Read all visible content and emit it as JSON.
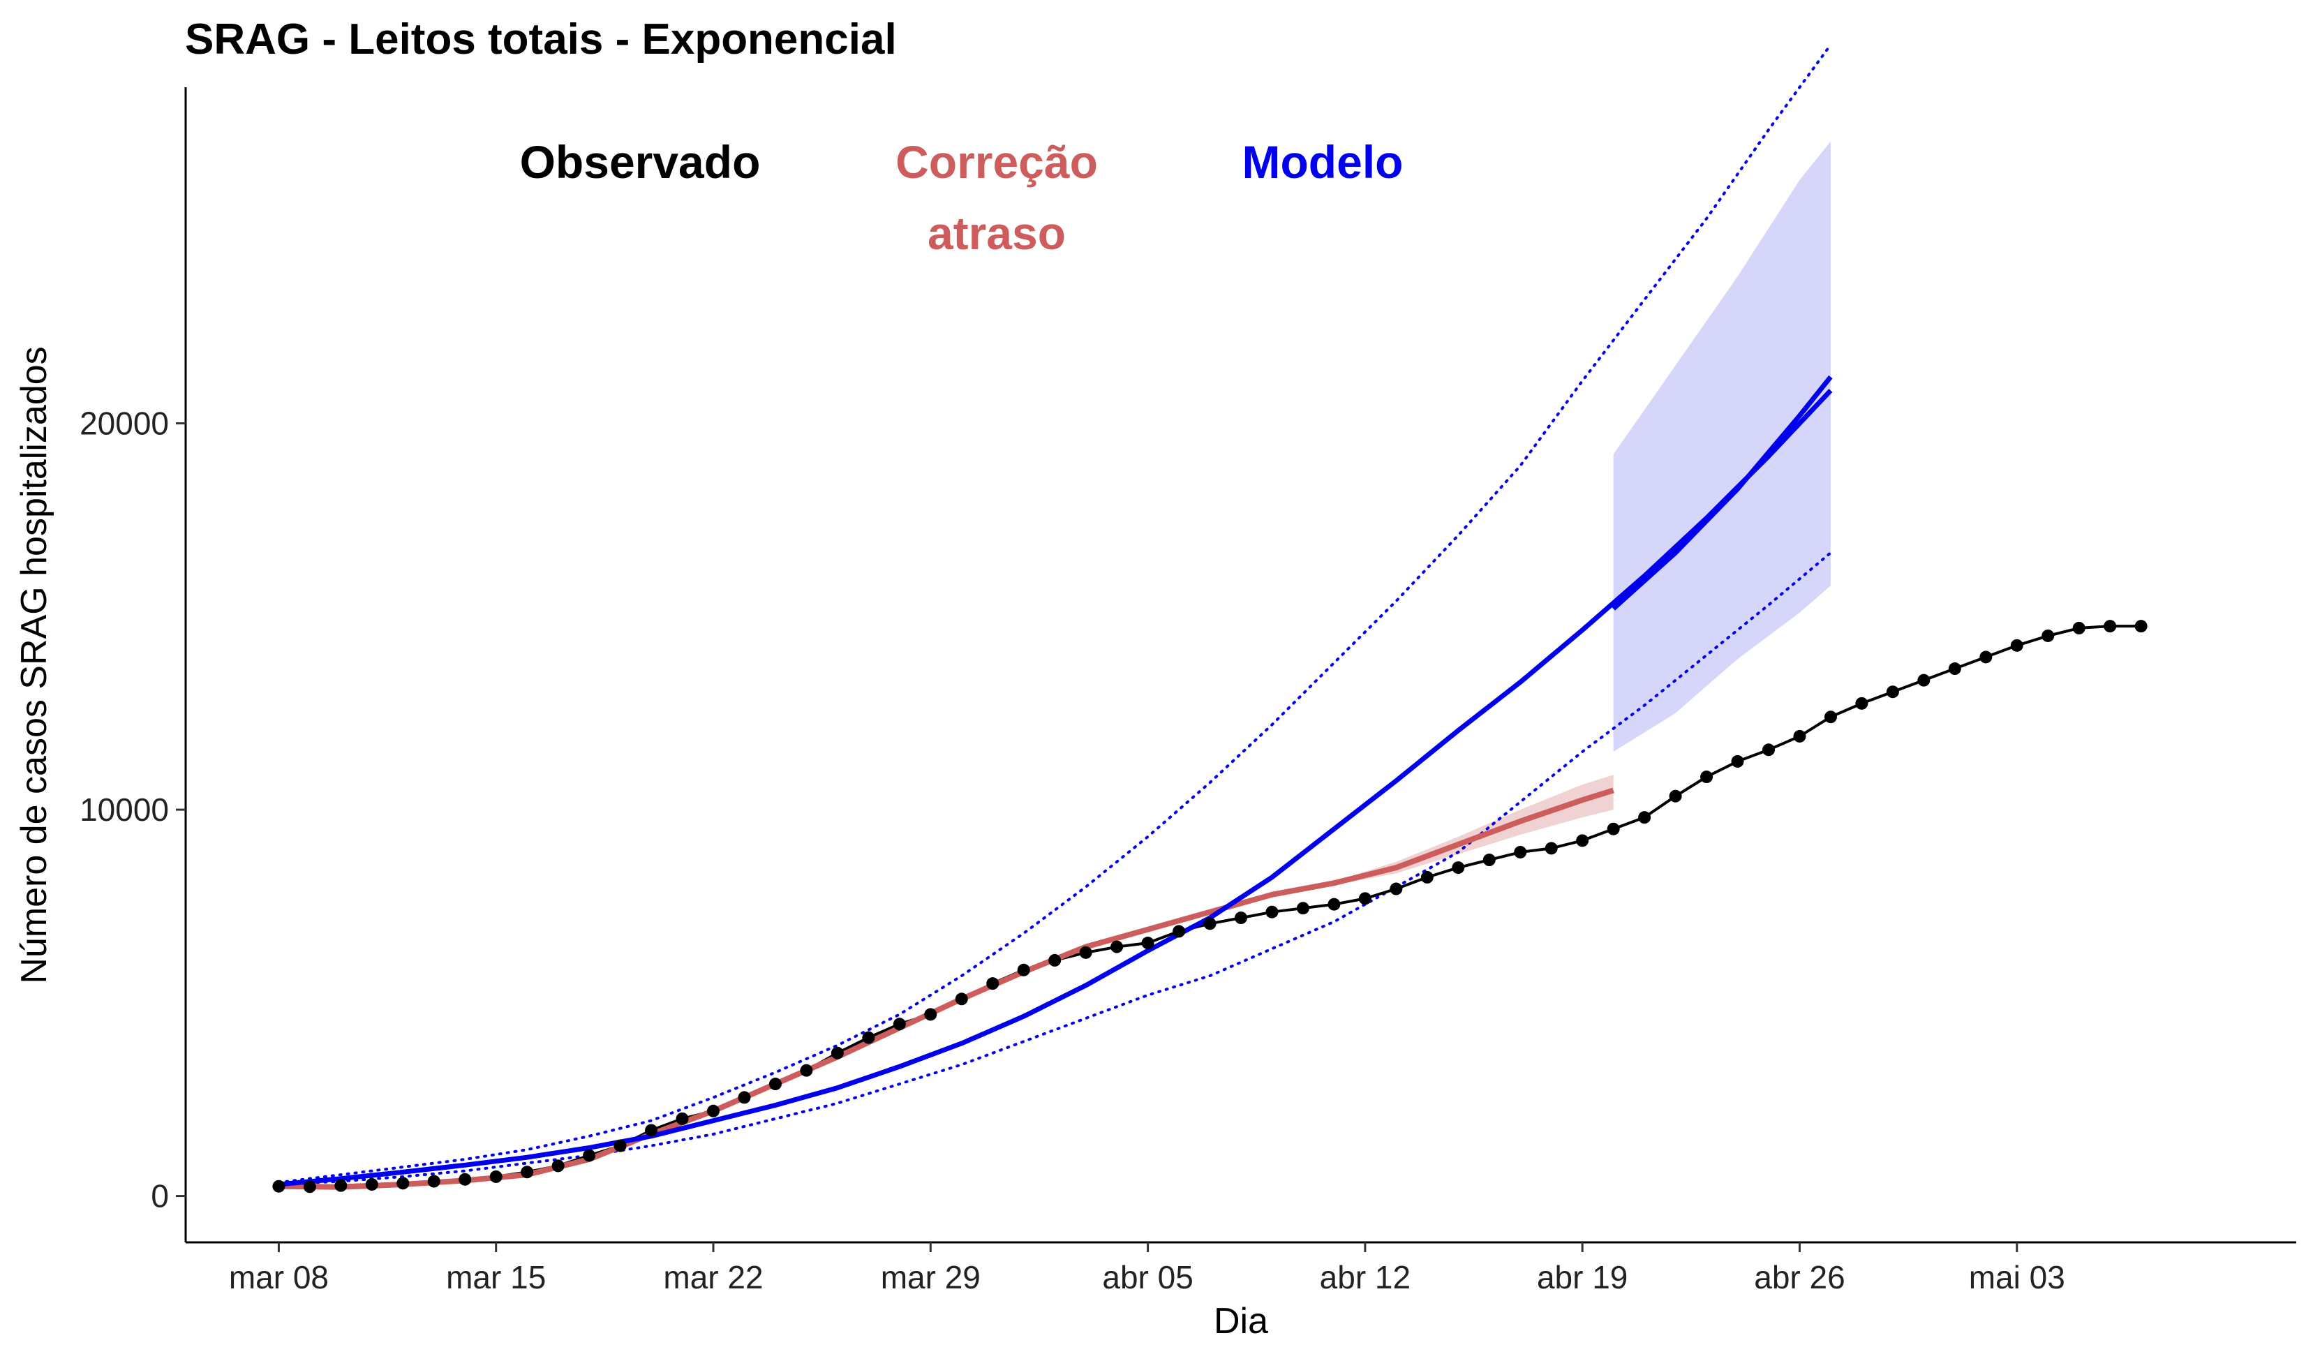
{
  "title": "SRAG - Leitos totais - Exponencial",
  "chart_data": {
    "type": "line",
    "title": "SRAG - Leitos totais - Exponencial",
    "xlabel": "Dia",
    "ylabel": "Número de casos SRAG hospitalizados",
    "x_ticks": [
      {
        "date": "2020-03-08",
        "label": "mar 08"
      },
      {
        "date": "2020-03-15",
        "label": "mar 15"
      },
      {
        "date": "2020-03-22",
        "label": "mar 22"
      },
      {
        "date": "2020-03-29",
        "label": "mar 29"
      },
      {
        "date": "2020-04-05",
        "label": "abr 05"
      },
      {
        "date": "2020-04-12",
        "label": "abr 12"
      },
      {
        "date": "2020-04-19",
        "label": "abr 19"
      },
      {
        "date": "2020-04-26",
        "label": "abr 26"
      },
      {
        "date": "2020-05-03",
        "label": "mai 03"
      }
    ],
    "y_ticks": [
      0,
      10000,
      20000
    ],
    "xlim": [
      "2020-03-05",
      "2020-05-12"
    ],
    "ylim": [
      -1200,
      28700
    ],
    "grid": false,
    "legend": {
      "position": "top-left",
      "entries": [
        {
          "label": "Observado",
          "color": "#000000"
        },
        {
          "label_lines": [
            "Correção",
            "atraso"
          ],
          "color": "#CD5C5C"
        },
        {
          "label": "Modelo",
          "color": "#0000EE"
        }
      ]
    },
    "colors": {
      "observed": "#000000",
      "correction": "#CD5C5C",
      "model": "#0000EE",
      "band_fill": "#D6D6FA",
      "correction_band": "#F1D2D2"
    },
    "observed": {
      "x": [
        "2020-03-08",
        "2020-03-09",
        "2020-03-10",
        "2020-03-11",
        "2020-03-12",
        "2020-03-13",
        "2020-03-14",
        "2020-03-15",
        "2020-03-16",
        "2020-03-17",
        "2020-03-18",
        "2020-03-19",
        "2020-03-20",
        "2020-03-21",
        "2020-03-22",
        "2020-03-23",
        "2020-03-24",
        "2020-03-25",
        "2020-03-26",
        "2020-03-27",
        "2020-03-28",
        "2020-03-29",
        "2020-03-30",
        "2020-03-31",
        "2020-04-01",
        "2020-04-02",
        "2020-04-03",
        "2020-04-04",
        "2020-04-05",
        "2020-04-06",
        "2020-04-07",
        "2020-04-08",
        "2020-04-09",
        "2020-04-10",
        "2020-04-11",
        "2020-04-12",
        "2020-04-13",
        "2020-04-14",
        "2020-04-15",
        "2020-04-16",
        "2020-04-17",
        "2020-04-18",
        "2020-04-19",
        "2020-04-20",
        "2020-04-21",
        "2020-04-22",
        "2020-04-23",
        "2020-04-24",
        "2020-04-25",
        "2020-04-26",
        "2020-04-27",
        "2020-04-28",
        "2020-04-29",
        "2020-04-30",
        "2020-05-01",
        "2020-05-02",
        "2020-05-03",
        "2020-05-04",
        "2020-05-05",
        "2020-05-06",
        "2020-05-07"
      ],
      "y": [
        250,
        240,
        270,
        300,
        330,
        380,
        430,
        500,
        620,
        780,
        1050,
        1300,
        1700,
        2000,
        2200,
        2550,
        2900,
        3250,
        3700,
        4100,
        4450,
        4700,
        5100,
        5500,
        5850,
        6100,
        6300,
        6450,
        6550,
        6850,
        7050,
        7200,
        7350,
        7450,
        7550,
        7700,
        7950,
        8250,
        8500,
        8700,
        8900,
        9000,
        9200,
        9500,
        9800,
        10350,
        10850,
        11250,
        11550,
        11900,
        12400,
        12750,
        13050,
        13350,
        13650,
        13950,
        14250,
        14500,
        14700,
        14750,
        14750
      ]
    },
    "correction": {
      "x": [
        "2020-03-08",
        "2020-03-10",
        "2020-03-12",
        "2020-03-14",
        "2020-03-16",
        "2020-03-18",
        "2020-03-20",
        "2020-03-22",
        "2020-03-24",
        "2020-03-26",
        "2020-03-28",
        "2020-03-30",
        "2020-04-01",
        "2020-04-03",
        "2020-04-05",
        "2020-04-07",
        "2020-04-09",
        "2020-04-11",
        "2020-04-13",
        "2020-04-15",
        "2020-04-17",
        "2020-04-19",
        "2020-04-20"
      ],
      "y": [
        250,
        230,
        300,
        400,
        550,
        950,
        1600,
        2200,
        2900,
        3600,
        4350,
        5100,
        5800,
        6450,
        6900,
        7350,
        7800,
        8100,
        8500,
        9100,
        9700,
        10250,
        10500
      ],
      "band_lower": [
        250,
        230,
        300,
        400,
        550,
        950,
        1600,
        2200,
        2900,
        3600,
        4350,
        5100,
        5800,
        6450,
        6900,
        7350,
        7800,
        8050,
        8350,
        8850,
        9350,
        9800,
        10000
      ],
      "band_upper": [
        250,
        230,
        300,
        400,
        550,
        950,
        1600,
        2200,
        2900,
        3600,
        4350,
        5100,
        5800,
        6450,
        6900,
        7350,
        7800,
        8150,
        8650,
        9300,
        10000,
        10650,
        10900
      ]
    },
    "model": {
      "x": [
        "2020-03-08",
        "2020-03-10",
        "2020-03-12",
        "2020-03-14",
        "2020-03-16",
        "2020-03-18",
        "2020-03-20",
        "2020-03-22",
        "2020-03-24",
        "2020-03-26",
        "2020-03-28",
        "2020-03-30",
        "2020-04-01",
        "2020-04-03",
        "2020-04-05",
        "2020-04-07",
        "2020-04-09",
        "2020-04-11",
        "2020-04-13",
        "2020-04-15",
        "2020-04-17",
        "2020-04-19",
        "2020-04-21",
        "2020-04-23",
        "2020-04-25",
        "2020-04-27"
      ],
      "y": [
        300,
        450,
        620,
        800,
        1000,
        1250,
        1550,
        1950,
        2350,
        2800,
        3350,
        3950,
        4650,
        5450,
        6350,
        7200,
        8250,
        9500,
        10750,
        12050,
        13300,
        14650,
        16050,
        17550,
        19150,
        20850
      ],
      "upper": [
        350,
        550,
        750,
        950,
        1200,
        1550,
        1950,
        2550,
        3200,
        3900,
        4700,
        5700,
        6800,
        8000,
        9300,
        10700,
        12200,
        13800,
        15400,
        17100,
        18900,
        21100,
        23200,
        25300,
        27600,
        29800
      ],
      "lower": [
        300,
        380,
        500,
        650,
        850,
        1050,
        1300,
        1600,
        2000,
        2400,
        2900,
        3400,
        4000,
        4600,
        5200,
        5700,
        6400,
        7100,
        8000,
        8900,
        10200,
        11500,
        12700,
        14000,
        15300,
        16650
      ]
    },
    "projection": {
      "x": [
        "2020-04-20",
        "2020-04-22",
        "2020-04-24",
        "2020-04-26",
        "2020-04-27"
      ],
      "y": [
        15200,
        16650,
        18300,
        20200,
        21200
      ],
      "upper": [
        19200,
        21500,
        23800,
        26300,
        27300
      ],
      "lower": [
        11500,
        12500,
        13900,
        15100,
        15800
      ]
    }
  }
}
